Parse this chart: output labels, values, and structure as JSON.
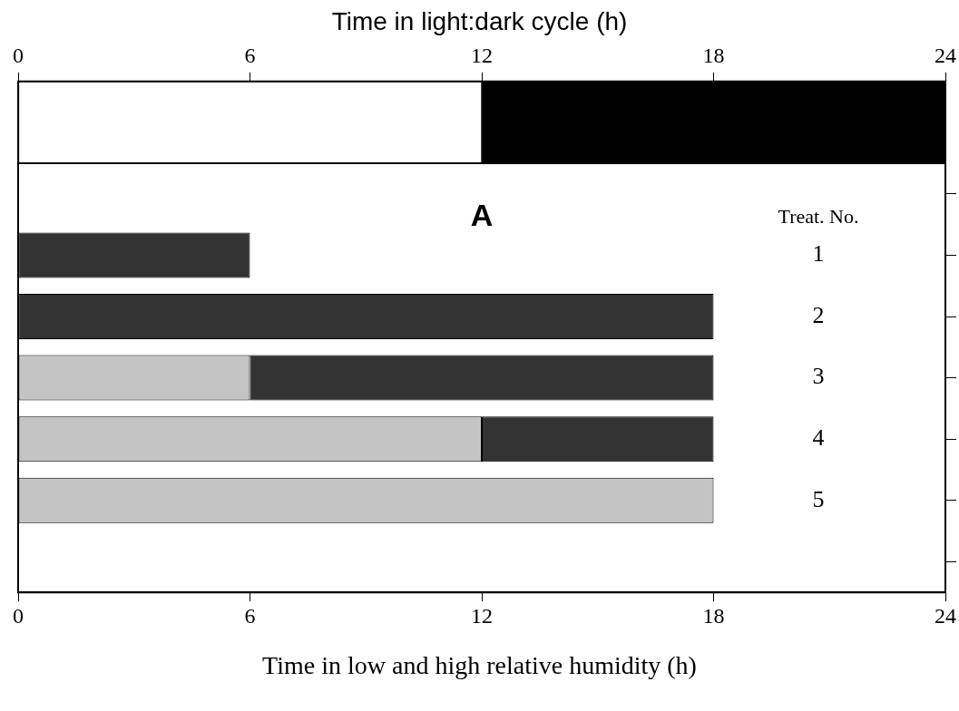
{
  "chart_data": [
    {
      "type": "bar",
      "orientation": "horizontal",
      "stacked": true,
      "x2label": "Time in light:dark cycle (h)",
      "categories": [
        null
      ],
      "series": [
        {
          "color": "#ffffff",
          "values": [
            12
          ],
          "axis": "x2"
        },
        {
          "color": "#000000",
          "values": [
            12
          ],
          "axis": "x2"
        }
      ],
      "x2lim": [
        0,
        24
      ],
      "x2ticks": [
        0,
        6,
        12,
        18,
        24
      ],
      "grid": false,
      "legend": false
    },
    {
      "type": "bar",
      "orientation": "horizontal",
      "stacked": true,
      "xlabel": "Time in low and high relative humidity (h)",
      "ylabel": "Treat. No.",
      "annotations": [
        "A"
      ],
      "categories": [
        null,
        "1",
        "2",
        "3",
        "4",
        "5",
        null
      ],
      "series": [
        {
          "color": "#c4c4c4",
          "values": [
            null,
            null,
            null,
            6,
            12,
            18,
            null
          ]
        },
        {
          "color": "#333333",
          "values": [
            null,
            6,
            18,
            12,
            6,
            null,
            null
          ]
        }
      ],
      "xlim": [
        0,
        24
      ],
      "xticks": [
        0,
        6,
        12,
        18,
        24
      ],
      "grid": false,
      "legend": false
    }
  ]
}
